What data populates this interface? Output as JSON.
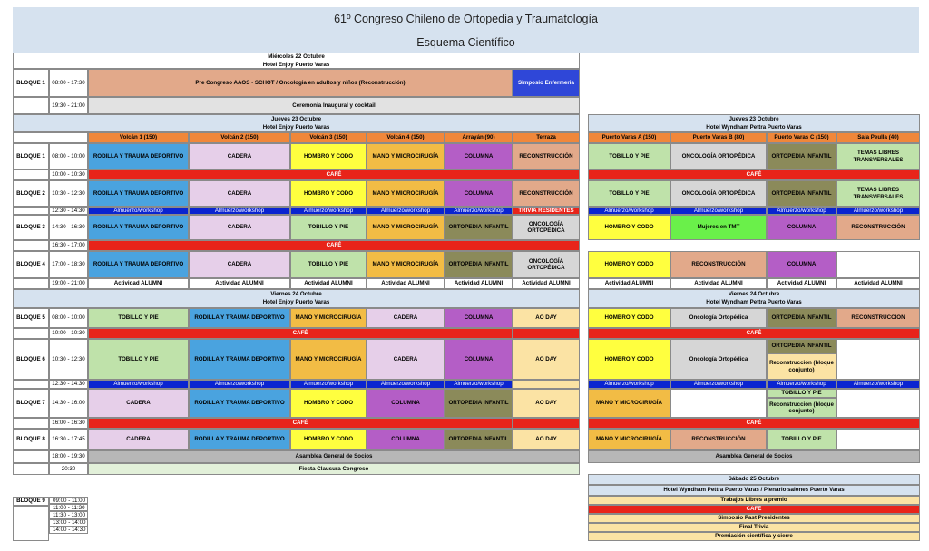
{
  "title": {
    "line1": "61º Congreso Chileno de Ortopedia y Traumatología",
    "line2": "Esquema Científico"
  },
  "colors": {
    "rodilla": "#4aa3df",
    "cadera": "#e6cfe9",
    "hombro": "#ffff3f",
    "mano": "#f2bc45",
    "columna": "#b45ec6",
    "reconstruccion": "#e2a98a",
    "tobillo": "#bfe2aa",
    "oncologia": "#d6d6d6",
    "ortopedia_infantil": "#8b8a5a",
    "aoday": "#fbe3a4",
    "cafe": "#e8241a",
    "almuerzo": "#0a24d0",
    "col_header": "#f0873a",
    "day_header": "#d6e2ef",
    "mujeres": "#6af04a",
    "enfermeria": "#2f47d8",
    "asamblea": "#b7b7b7",
    "fiesta": "#e2f0d9",
    "ceremonia": "#e2e2e2",
    "precongreso": "#e2a98a"
  },
  "wed": {
    "day": "Miércoles 22 Octubre",
    "venue": "Hotel Enjoy Puerto Varas",
    "bloque1": "BLOQUE 1",
    "t1": "08:00 - 17:30",
    "precongreso": "Pre Congreso AAOS - SCHOT / Oncologia en adultos y niños (Reconstrucción)",
    "enfermeria": "Simposio Enfermeria",
    "t2": "19:30 - 21:00",
    "ceremonia": "Ceremonia Inaugural y cocktail"
  },
  "thu_left": {
    "day": "Jueves 23 Octubre",
    "venue": "Hotel Enjoy Puerto Varas",
    "rooms": [
      "Volcán 1 (150)",
      "Volcán 2 (150)",
      "Volcán 3 (150)",
      "Volcán 4 (150)",
      "Arrayán (90)",
      "Terraza"
    ]
  },
  "thu_right": {
    "day": "Jueves 23 Octubre",
    "venue": "Hotel Wyndham Pettra Puerto Varas",
    "rooms": [
      "Puerto Varas A (150)",
      "Puerto Varas B (80)",
      "Puerto Varas C (150)",
      "Sala Peulla (40)"
    ]
  },
  "fri_left": {
    "day": "Viernes 24 Octubre",
    "venue": "Hotel Enjoy Puerto Varas"
  },
  "fri_right": {
    "day": "Viernes 24 Octubre",
    "venue": "Hotel Wyndham Pettra Puerto Varas"
  },
  "labels": {
    "b1": "BLOQUE 1",
    "b2": "BLOQUE 2",
    "b3": "BLOQUE 3",
    "b4": "BLOQUE 4",
    "b5": "BLOQUE 5",
    "b6": "BLOQUE 6",
    "b7": "BLOQUE 7",
    "b8": "BLOQUE 8",
    "b9": "BLOQUE 9"
  },
  "times": {
    "t0800_1000": "08:00 - 10:00",
    "t1000_1030": "10:00 - 10:30",
    "t1030_1230": "10:30 - 12:30",
    "t1230_1430": "12:30 - 14:30",
    "t1430_1630": "14:30 - 16:30",
    "t1630_1700": "16:30 - 17:00",
    "t1700_1830": "17:00 - 18:30",
    "t1900_2100": "19:00 - 21:00",
    "f0800_1000": "08:00 - 10:00",
    "f1000_1030": "10:00 - 10:30",
    "f1030_1230": "10:30 - 12:30",
    "f1230_1430": "12:30 - 14:30",
    "f1430_1600": "14:30 - 16:00",
    "f1600_1630": "16:00 - 16:30",
    "f1630_1745": "16:30 - 17:45",
    "f1800_1930": "18:00 - 19:30",
    "f2030": "20:30"
  },
  "topics": {
    "rodilla": "RODILLA Y TRAUMA DEPORTIVO",
    "cadera": "CADERA",
    "hombro": "HOMBRO Y CODO",
    "mano": "MANO Y MICROCIRUGÍA",
    "columna": "COLUMNA",
    "reconstruccion": "RECONSTRUCCIÓN",
    "tobillo": "TOBILLO Y PIE",
    "oncologia": "ONCOLOGÍA ORTOPÉDICA",
    "orto_inf": "ORTOPEDIA INFANTIL",
    "temas": "TEMAS LIBRES TRANSVERSALES",
    "cafe": "CAFÉ",
    "almuerzo": "Almuerzo/workshop",
    "trivia": "TRIVIA RESIDENTES",
    "actividad": "Actividad ALUMNI",
    "mujeres": "Mujeres en TMT",
    "aoday": "AO DAY",
    "onco_mixed": "Oncología Ortopédica",
    "recon_bloque": "Reconstrucción (bloque conjunto)",
    "asamblea": "Asamblea General de Socios",
    "fiesta": "Fiesta Clausura Congreso"
  },
  "saturday": {
    "day": "Sábado 25 Octubre",
    "venue": "Hotel Wyndham Pettra Puerto Varas / Plenario salones Puerto Varas",
    "items": [
      "Trabajos Libres a premio",
      "CAFÉ",
      "Simposio Past Presidentes",
      "Final Trivia",
      "Premiación científica y cierre"
    ]
  },
  "bloque9": {
    "label": "BLOQUE 9",
    "times": [
      "09:00 - 11:00",
      "11:00 - 11:30",
      "11:30 - 13:00",
      "13:00 - 14:00",
      "14:00 - 14:30"
    ]
  }
}
